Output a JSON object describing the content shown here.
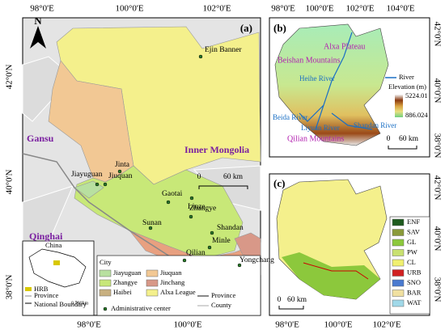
{
  "panel_a": {
    "label": "(a)",
    "north": "N",
    "top_lon": [
      "98°0'E",
      "100°0'E",
      "102°0'E"
    ],
    "left_lat": [
      "42°0'N",
      "40°0'N",
      "38°0'N"
    ],
    "bottom_lon": [
      "98°0'E",
      "100°0'E"
    ],
    "places": [
      "Ejin Banner",
      "Jinta",
      "Jiayuguan",
      "Jiuquan",
      "Gaotai",
      "Linze",
      "Zhangye",
      "Sunan",
      "Shandan",
      "Minle",
      "Qilian",
      "Yongchang"
    ],
    "regions": [
      "Gansu",
      "Inner Mongolia",
      "Qinghai"
    ],
    "scale": [
      "0",
      "60 km"
    ],
    "legend": {
      "title": "City",
      "items": [
        "Jiayuguan",
        "Jiuquan",
        "Zhangye",
        "Jinchang",
        "Haibei",
        "Alxa League"
      ],
      "admin": "Administrative center",
      "lines": [
        "Province",
        "County"
      ]
    },
    "inset": {
      "title": "China",
      "items": [
        "HRB",
        "Province",
        "National Boundary"
      ],
      "scale": "0 590km"
    }
  },
  "panel_b": {
    "label": "(b)",
    "top_lon": [
      "98°0'E",
      "100°0'E",
      "102°0'E",
      "104°0'E"
    ],
    "right_lat": [
      "42°0'N",
      "40°0'N",
      "38°0'N"
    ],
    "features": [
      "Alxa Plateau",
      "Beishan Mountains",
      "Qilian Mountains"
    ],
    "rivers": [
      "Heihe River",
      "Beida River",
      "Liyuan River",
      "Shandan River"
    ],
    "legend": {
      "river": "River",
      "title": "Elevation (m)",
      "high": "5224.01",
      "low": "886.024"
    },
    "scale": [
      "0",
      "60 km"
    ]
  },
  "panel_c": {
    "label": "(c)",
    "bottom_lon": [
      "98°0'E",
      "100°0'E",
      "102°0'E"
    ],
    "right_lat": [
      "42°0'N",
      "40°0'N",
      "38°0'N"
    ],
    "legend": [
      "ENF",
      "SAV",
      "GL",
      "PW",
      "CL",
      "URB",
      "SNO",
      "BAR",
      "WAT"
    ],
    "scale": [
      "0",
      "60 km"
    ]
  }
}
